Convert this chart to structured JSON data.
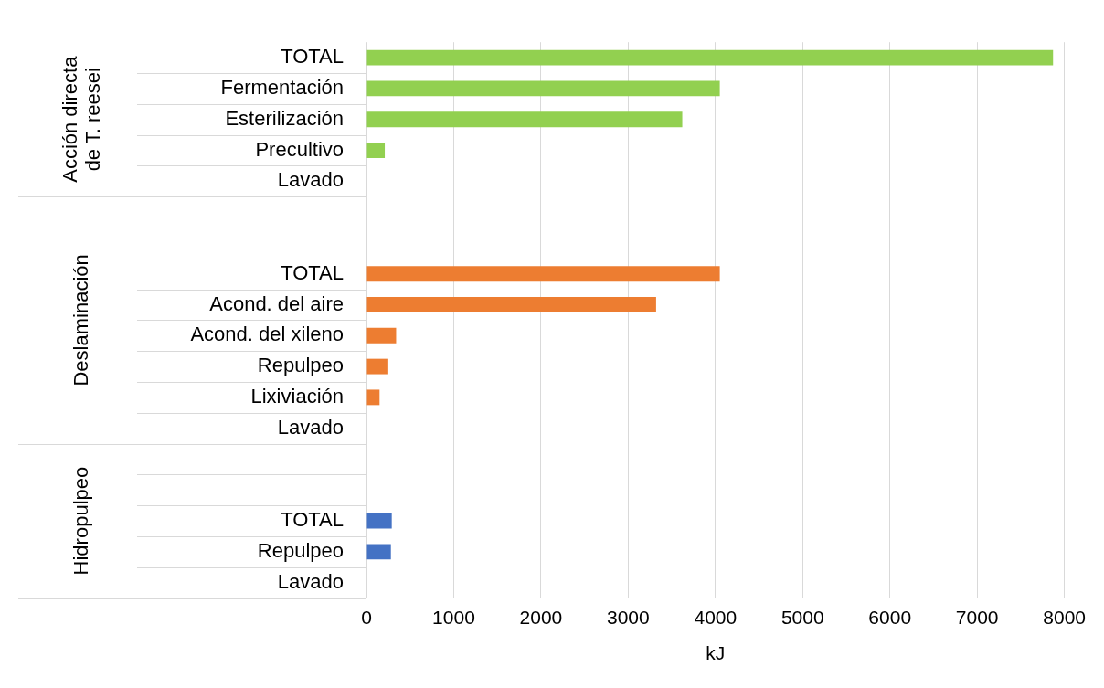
{
  "chart_data": {
    "type": "bar",
    "orientation": "horizontal",
    "xlabel": "kJ",
    "categories": [
      "TOTAL",
      "Fermentación",
      "Esterilización",
      "Precultivo",
      "Lavado",
      null,
      null,
      "TOTAL",
      "Acond. del aire",
      "Acond. del xileno",
      "Repulpeo",
      "Lixiviación",
      "Lavado",
      null,
      null,
      "TOTAL",
      "Repulpeo",
      "Lavado"
    ],
    "series": [
      {
        "color": "#92d050",
        "values": [
          7870,
          4050,
          3620,
          210,
          0,
          null,
          null,
          null,
          null,
          null,
          null,
          null,
          null,
          null,
          null,
          null,
          null,
          null
        ]
      },
      {
        "color": "#ed7d31",
        "values": [
          null,
          null,
          null,
          null,
          null,
          null,
          null,
          4050,
          3320,
          340,
          250,
          150,
          0,
          null,
          null,
          null,
          null,
          null
        ]
      },
      {
        "color": "#4472c4",
        "values": [
          null,
          null,
          null,
          null,
          null,
          null,
          null,
          null,
          null,
          null,
          null,
          null,
          null,
          null,
          null,
          290,
          280,
          0
        ]
      }
    ],
    "xlim": [
      0,
      8000
    ],
    "xticks": [
      0,
      1000,
      2000,
      3000,
      4000,
      5000,
      6000,
      7000,
      8000
    ],
    "annotations": [
      "Acción directa de T. reesei",
      "Deslaminación",
      "Hidropulpeo"
    ],
    "grid": "x",
    "legend": false
  }
}
